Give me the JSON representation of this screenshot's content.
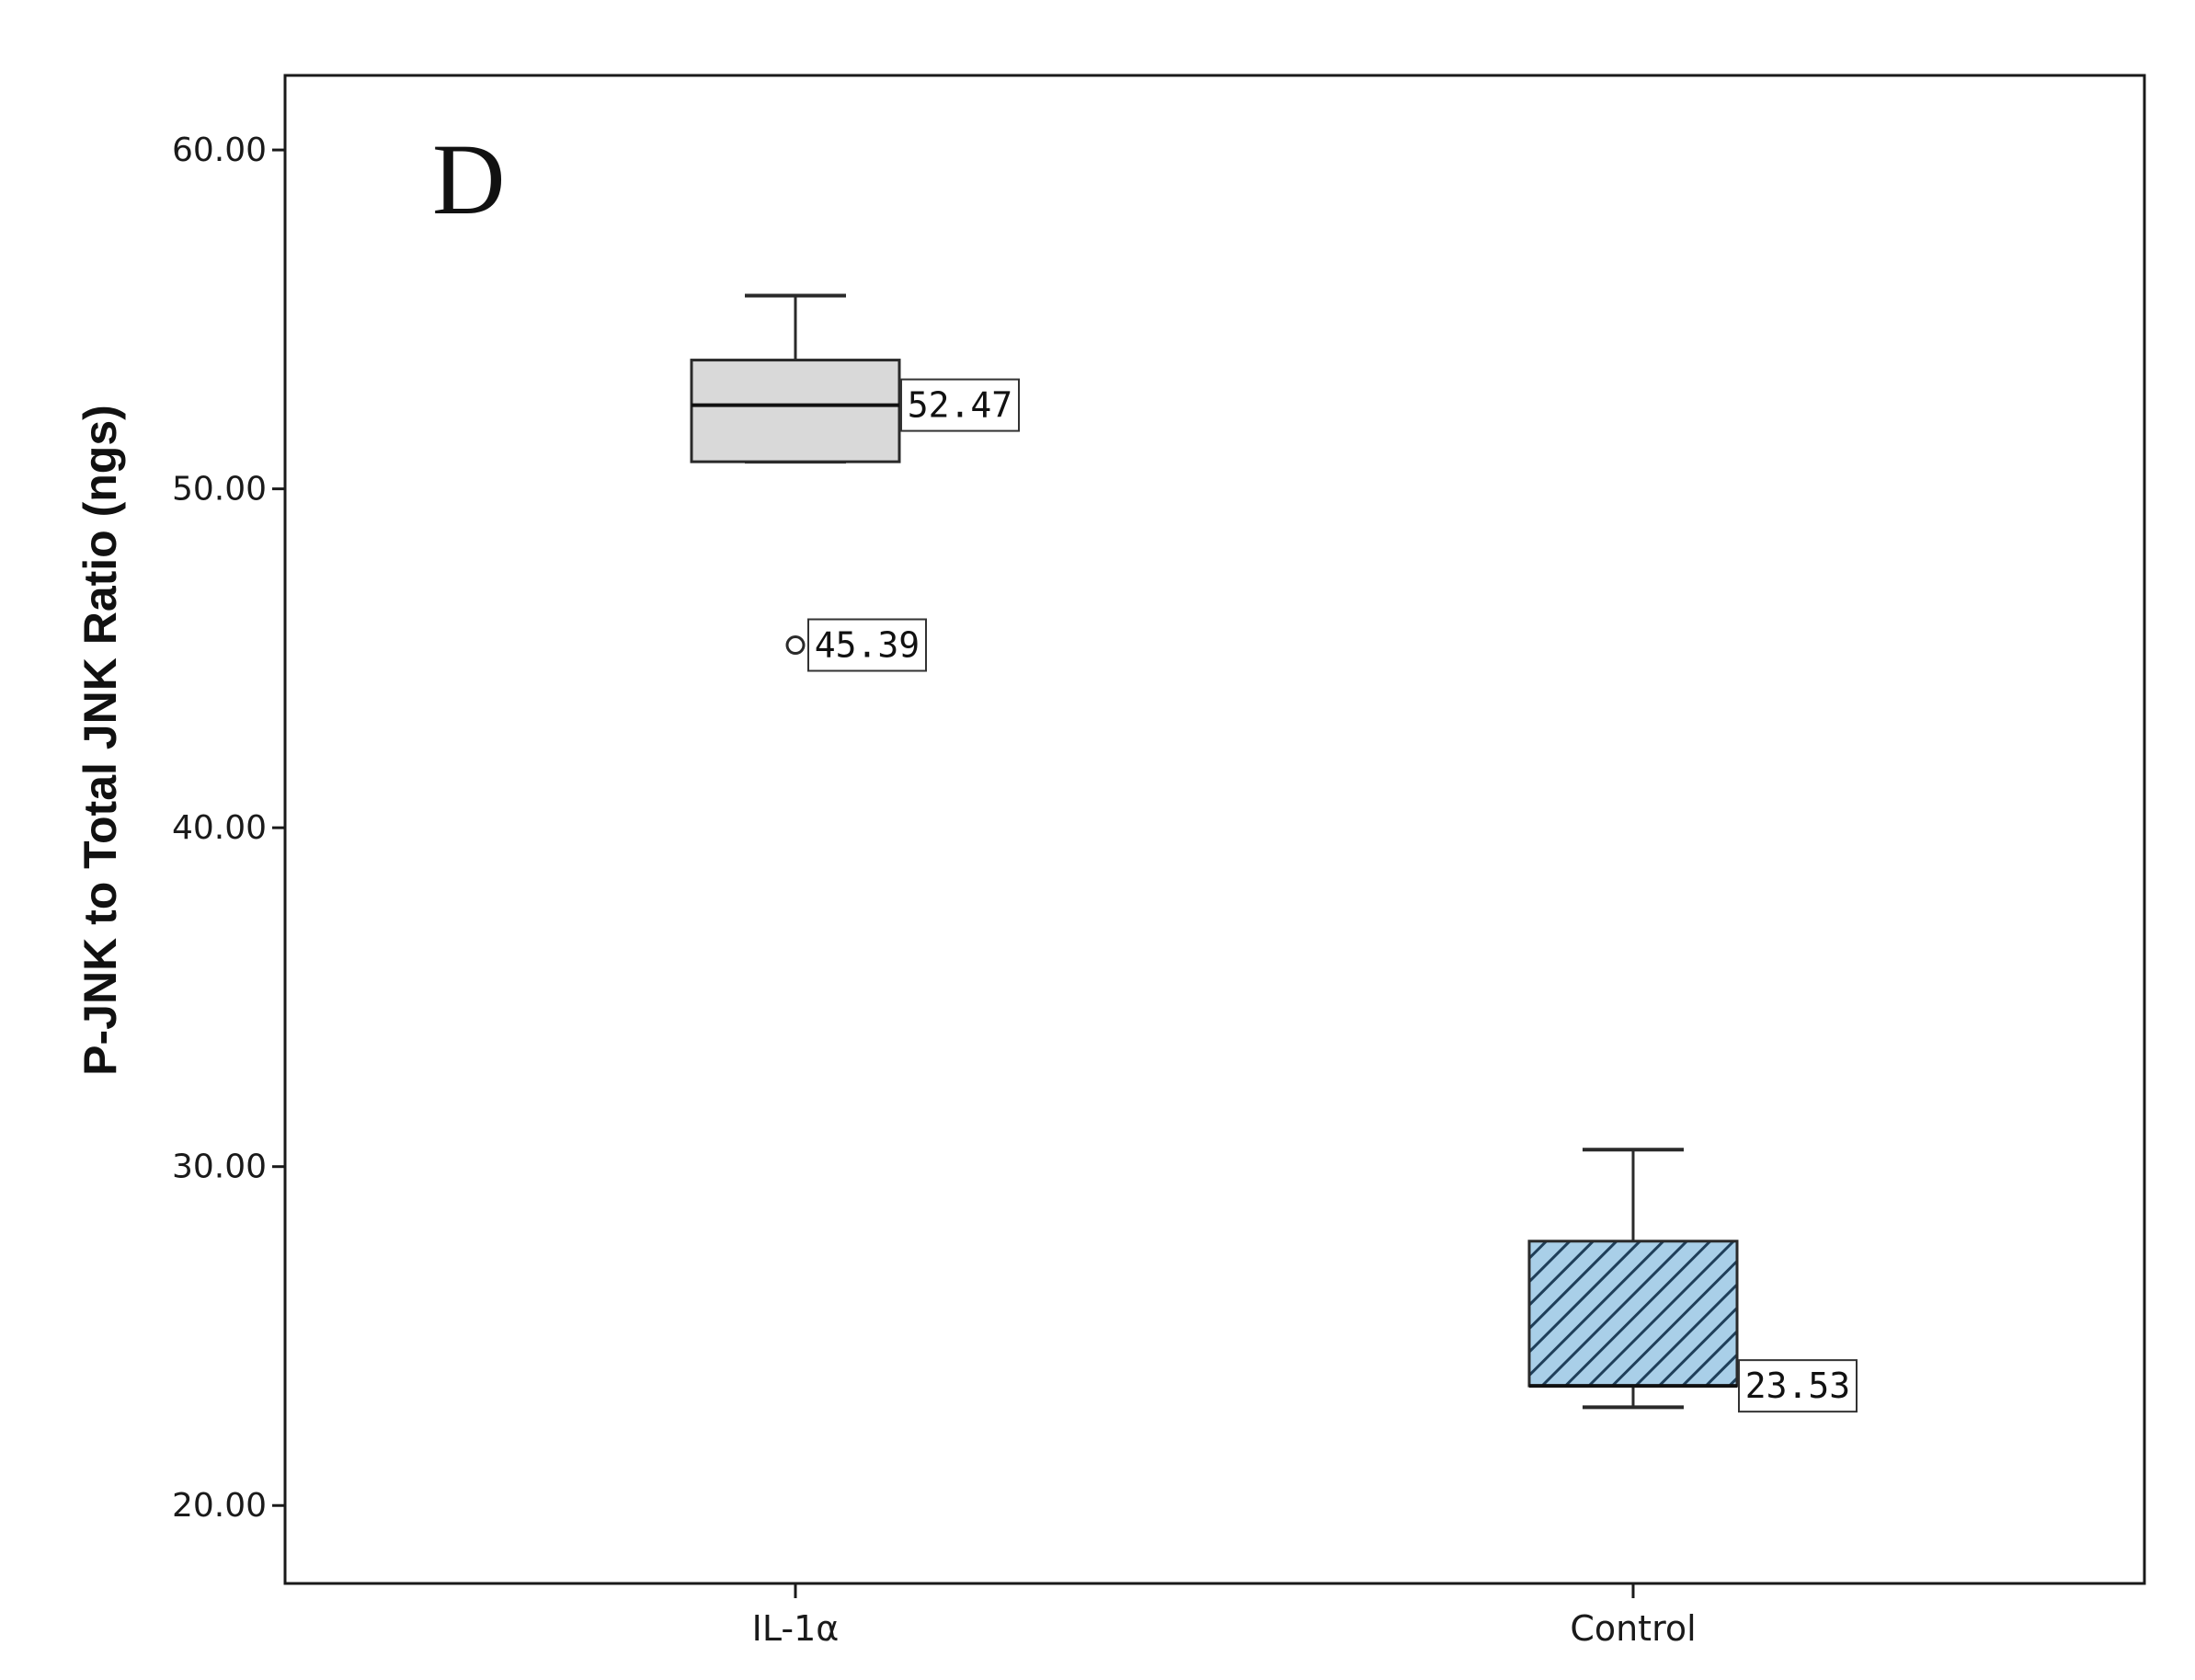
{
  "chart_data": {
    "type": "box",
    "panel_label": "D",
    "ylabel": "P-JNK to Total JNK Ratio (ngs)",
    "xlabel": "",
    "ylim": [
      17.7,
      62.2
    ],
    "yticks": [
      20.0,
      30.0,
      40.0,
      50.0,
      60.0
    ],
    "ytick_labels": [
      "20.00",
      "30.00",
      "40.00",
      "50.00",
      "60.00"
    ],
    "grid": false,
    "legend": "none",
    "categories": [
      "IL-1α",
      "Control"
    ],
    "boxes": [
      {
        "category": "IL-1α",
        "whisker_low": 50.8,
        "q1": 50.8,
        "median": 52.47,
        "q3": 53.8,
        "whisker_high": 55.7,
        "outliers": [
          45.39
        ],
        "fill": "#d9d9d9",
        "pattern": "none",
        "data_labels": [
          {
            "value": 52.47,
            "text": "52.47",
            "anchor": "median"
          },
          {
            "value": 45.39,
            "text": "45.39",
            "anchor": "outlier"
          }
        ]
      },
      {
        "category": "Control",
        "whisker_low": 22.9,
        "q1": 23.53,
        "median": 23.53,
        "q3": 27.8,
        "whisker_high": 30.5,
        "outliers": [],
        "fill": "#a9cfe8",
        "pattern": "diagonal-hatch",
        "data_labels": [
          {
            "value": 23.53,
            "text": "23.53",
            "anchor": "median"
          }
        ]
      }
    ],
    "colors": {
      "axis": "#1a1a1a",
      "box_stroke": "#2a2a2a",
      "hatch_stroke": "#1f3f5a",
      "label_box_stroke": "#333333"
    }
  }
}
